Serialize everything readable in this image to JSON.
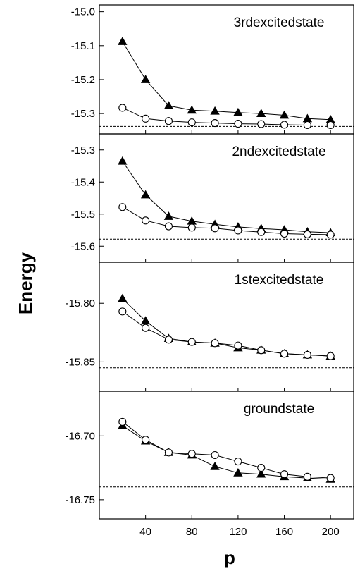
{
  "chart_data": {
    "type": "line",
    "xlabel": "p",
    "ylabel": "Energy",
    "xlim": [
      0,
      220
    ],
    "x_ticks": [
      40,
      80,
      120,
      160,
      200
    ],
    "x_tick_labels": [
      "40",
      "80",
      "120",
      "160",
      "200"
    ],
    "grid": false,
    "panels": [
      {
        "label": "3rdexcitedstate",
        "ylim": [
          -15.36,
          -14.98
        ],
        "y_ticks": [
          "-15.0",
          "-15.1",
          "-15.2",
          "-15.3"
        ],
        "reference": -15.338,
        "series": [
          {
            "marker": "filled-triangle",
            "x": [
              20,
              40,
              60,
              80,
              100,
              120,
              140,
              160,
              180,
              200
            ],
            "y": [
              -15.088,
              -15.2,
              -15.277,
              -15.29,
              -15.293,
              -15.297,
              -15.3,
              -15.305,
              -15.315,
              -15.318
            ]
          },
          {
            "marker": "open-circle",
            "x": [
              20,
              40,
              60,
              80,
              100,
              120,
              140,
              160,
              180,
              200
            ],
            "y": [
              -15.283,
              -15.315,
              -15.322,
              -15.326,
              -15.328,
              -15.33,
              -15.331,
              -15.333,
              -15.334,
              -15.334
            ]
          }
        ]
      },
      {
        "label": "2ndexcitedstate",
        "ylim": [
          -15.65,
          -15.25
        ],
        "y_ticks": [
          "-15.3",
          "-15.4",
          "-15.5",
          "-15.6"
        ],
        "reference": -15.578,
        "series": [
          {
            "marker": "filled-triangle",
            "x": [
              20,
              40,
              60,
              80,
              100,
              120,
              140,
              160,
              180,
              200
            ],
            "y": [
              -15.335,
              -15.44,
              -15.507,
              -15.522,
              -15.532,
              -15.54,
              -15.545,
              -15.549,
              -15.555,
              -15.558
            ]
          },
          {
            "marker": "open-circle",
            "x": [
              20,
              40,
              60,
              80,
              100,
              120,
              140,
              160,
              180,
              200
            ],
            "y": [
              -15.478,
              -15.52,
              -15.538,
              -15.542,
              -15.544,
              -15.551,
              -15.556,
              -15.561,
              -15.563,
              -15.564
            ]
          }
        ]
      },
      {
        "label": "1stexcitedstate",
        "ylim": [
          -15.875,
          -15.765
        ],
        "y_ticks": [
          "-15.80",
          "-15.85"
        ],
        "reference": -15.855,
        "series": [
          {
            "marker": "filled-triangle",
            "x": [
              20,
              40,
              60,
              80,
              100,
              120,
              140,
              160,
              180,
              200
            ],
            "y": [
              -15.796,
              -15.815,
              -15.83,
              -15.833,
              -15.834,
              -15.838,
              -15.84,
              -15.843,
              -15.844,
              -15.845
            ]
          },
          {
            "marker": "open-circle",
            "x": [
              20,
              40,
              60,
              80,
              100,
              120,
              140,
              160,
              180,
              200
            ],
            "y": [
              -15.807,
              -15.821,
              -15.831,
              -15.833,
              -15.834,
              -15.836,
              -15.84,
              -15.843,
              -15.844,
              -15.845
            ]
          }
        ]
      },
      {
        "label": "groundstate",
        "ylim": [
          -16.765,
          -16.665
        ],
        "y_ticks": [
          "-16.70",
          "-16.75"
        ],
        "reference": -16.74,
        "series": [
          {
            "marker": "filled-triangle",
            "x": [
              20,
              40,
              60,
              80,
              100,
              120,
              140,
              160,
              180,
              200
            ],
            "y": [
              -16.692,
              -16.704,
              -16.713,
              -16.715,
              -16.724,
              -16.729,
              -16.73,
              -16.732,
              -16.733,
              -16.734
            ]
          },
          {
            "marker": "open-circle",
            "x": [
              20,
              40,
              60,
              80,
              100,
              120,
              140,
              160,
              180,
              200
            ],
            "y": [
              -16.689,
              -16.703,
              -16.713,
              -16.714,
              -16.715,
              -16.72,
              -16.725,
              -16.73,
              -16.732,
              -16.733
            ]
          }
        ]
      }
    ]
  }
}
